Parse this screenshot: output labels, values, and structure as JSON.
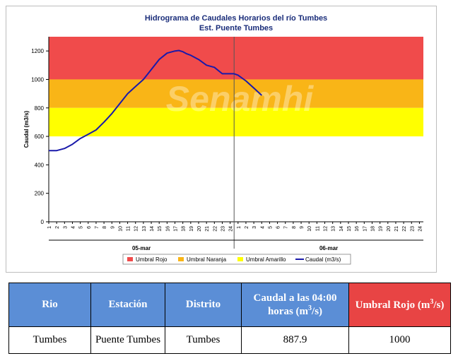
{
  "chart_data": {
    "type": "line",
    "title": "Hidrograma de Caudales Horarios del río Tumbes",
    "subtitle": "Est. Puente Tumbes",
    "ylabel": "Caudal  (m3/s)",
    "ylim": [
      0,
      1300
    ],
    "yticks": [
      0,
      200,
      400,
      600,
      800,
      1000,
      1200
    ],
    "x_ticks": [
      "1",
      "2",
      "3",
      "4",
      "5",
      "6",
      "7",
      "8",
      "9",
      "10",
      "11",
      "12",
      "13",
      "14",
      "15",
      "16",
      "17",
      "18",
      "19",
      "20",
      "21",
      "22",
      "23",
      "24",
      "1",
      "2",
      "3",
      "4",
      "5",
      "6",
      "7",
      "8",
      "9",
      "10",
      "11",
      "12",
      "13",
      "14",
      "15",
      "16",
      "17",
      "18",
      "19",
      "20",
      "21",
      "22",
      "23",
      "24"
    ],
    "day_labels": [
      "05-mar",
      "06-mar"
    ],
    "bands": [
      {
        "name": "Umbral Rojo",
        "from": 1000,
        "to": 1300,
        "color": "#f04b4b"
      },
      {
        "name": "Umbral Naranja",
        "from": 800,
        "to": 1000,
        "color": "#f9b517"
      },
      {
        "name": "Umbral Amarillo",
        "from": 600,
        "to": 800,
        "color": "#ffff00"
      }
    ],
    "series": [
      {
        "name": "Caudal (m3/s)",
        "color": "#1a1aaa",
        "x": [
          0,
          1,
          2,
          3,
          4,
          5,
          6,
          7,
          8,
          9,
          10,
          11,
          12,
          13,
          14,
          15,
          16,
          16.5,
          17,
          17.5,
          18,
          19,
          20,
          21,
          22,
          23,
          23.5,
          24,
          25,
          26,
          27
        ],
        "y": [
          500,
          500,
          515,
          545,
          585,
          615,
          645,
          700,
          760,
          830,
          900,
          950,
          1000,
          1070,
          1140,
          1185,
          1200,
          1203,
          1195,
          1180,
          1170,
          1140,
          1100,
          1085,
          1040,
          1040,
          1040,
          1030,
          990,
          940,
          888
        ]
      }
    ],
    "legend_position": "bottom",
    "watermark": "Senamhi"
  },
  "table": {
    "headers": [
      "Rio",
      "Estación",
      "Distrito",
      "Caudal a las 04:00 horas (m³/s)",
      "Umbral Rojo (m³/s)"
    ],
    "row": [
      "Tumbes",
      "Puente Tumbes",
      "Tumbes",
      "887.9",
      "1000"
    ]
  }
}
